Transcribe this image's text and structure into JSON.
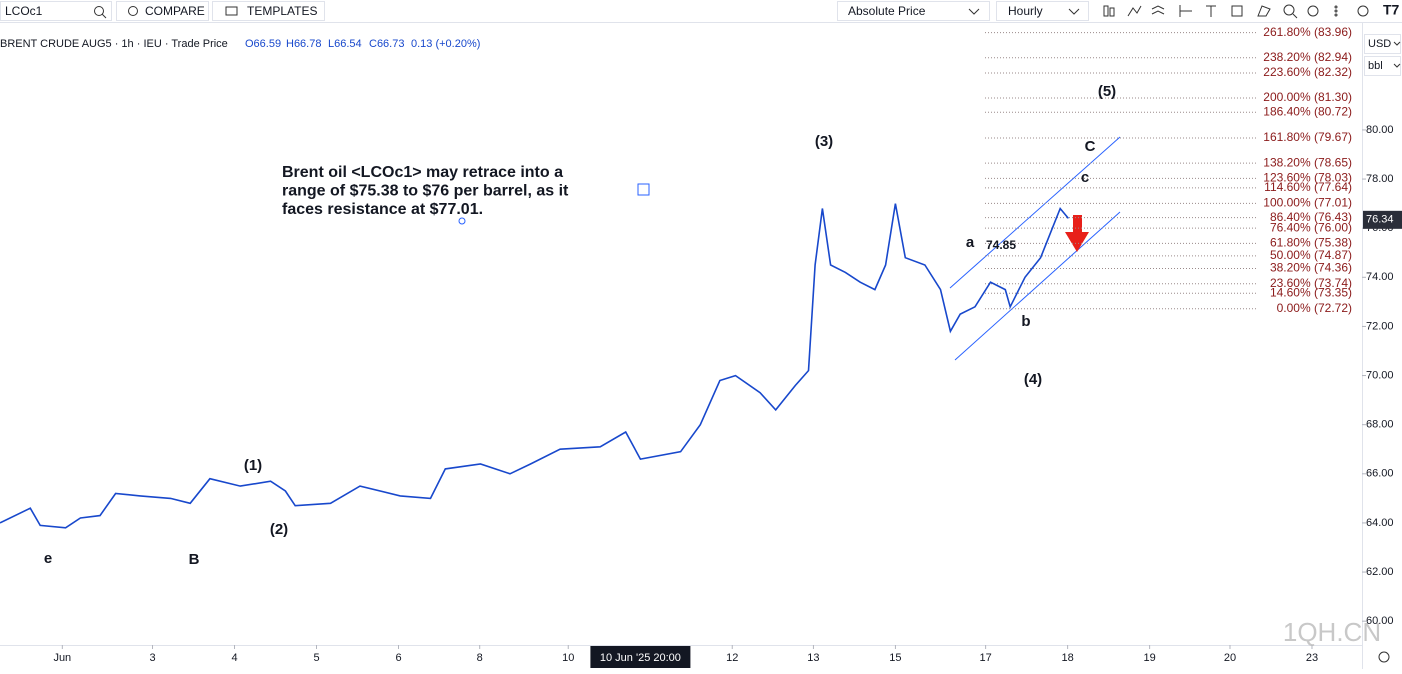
{
  "toolbar": {
    "symbol": "LCOc1",
    "compare": "COMPARE",
    "templates": "TEMPLATES",
    "price_mode": "Absolute Price",
    "interval": "Hourly"
  },
  "legend": {
    "title": "BRENT CRUDE AUG5 · 1h · IEU · Trade Price",
    "open": "O66.59",
    "high": "H66.78",
    "low": "L66.54",
    "close": "C66.73",
    "change": "0.13 (+0.20%)"
  },
  "currency": "USD",
  "unit": "bbl",
  "watermark": "1QH.CN",
  "chart_data": {
    "type": "line",
    "color": "#1848cc",
    "x": [
      -0.76,
      -0.39,
      -0.27,
      0.04,
      0.22,
      0.46,
      0.65,
      0.95,
      1.32,
      1.56,
      1.8,
      2.17,
      2.54,
      2.72,
      2.84,
      3.27,
      3.63,
      4.12,
      4.49,
      4.67,
      5.1,
      5.46,
      5.71,
      6.07,
      6.56,
      6.87,
      7.05,
      7.54,
      7.78,
      8.02,
      8.21,
      8.51,
      8.7,
      8.94,
      9.1,
      9.18,
      9.27,
      9.37,
      9.55,
      9.73,
      9.91,
      10.04,
      10.16,
      10.28,
      10.52,
      10.71,
      10.83,
      10.95,
      11.13,
      11.32,
      11.5,
      11.56,
      11.74,
      11.93,
      12.05,
      12.17,
      12.27
    ],
    "values": [
      64.0,
      64.6,
      63.9,
      63.8,
      64.2,
      64.3,
      65.2,
      65.1,
      65.0,
      64.8,
      65.8,
      65.5,
      65.7,
      65.3,
      64.7,
      64.8,
      65.5,
      65.1,
      65.0,
      66.2,
      66.4,
      66.0,
      66.4,
      67.0,
      67.1,
      67.7,
      66.6,
      66.9,
      68.0,
      69.8,
      70.0,
      69.3,
      68.6,
      69.6,
      70.2,
      74.5,
      76.8,
      74.5,
      74.2,
      73.8,
      73.5,
      74.5,
      77.0,
      74.8,
      74.5,
      73.5,
      71.8,
      72.5,
      72.8,
      73.8,
      73.5,
      72.8,
      74.0,
      74.8,
      75.8,
      76.8,
      76.4
    ],
    "xlim": [
      -0.76,
      15.85
    ],
    "xticks": [
      {
        "value": 0,
        "label": "Jun"
      },
      {
        "value": 1.1,
        "label": "3"
      },
      {
        "value": 2.1,
        "label": "4"
      },
      {
        "value": 3.1,
        "label": "5"
      },
      {
        "value": 4.1,
        "label": "6"
      },
      {
        "value": 5.09,
        "label": "8"
      },
      {
        "value": 6.17,
        "label": "10"
      },
      {
        "value": 8.17,
        "label": "12"
      },
      {
        "value": 9.16,
        "label": "13"
      },
      {
        "value": 10.16,
        "label": "15"
      },
      {
        "value": 11.26,
        "label": "17"
      },
      {
        "value": 12.26,
        "label": "18"
      },
      {
        "value": 13.26,
        "label": "19"
      },
      {
        "value": 14.24,
        "label": "20"
      },
      {
        "value": 15.24,
        "label": "23"
      }
    ],
    "ylim": [
      59.03,
      85.29
    ],
    "yticks": [
      {
        "value": 60,
        "label": "60.00"
      },
      {
        "value": 62,
        "label": "62.00"
      },
      {
        "value": 64,
        "label": "64.00"
      },
      {
        "value": 66,
        "label": "66.00"
      },
      {
        "value": 68,
        "label": "68.00"
      },
      {
        "value": 70,
        "label": "70.00"
      },
      {
        "value": 72,
        "label": "72.00"
      },
      {
        "value": 74,
        "label": "74.00"
      },
      {
        "value": 76,
        "label": "76.00"
      },
      {
        "value": 78,
        "label": "78.00"
      },
      {
        "value": 80,
        "label": "80.00"
      }
    ],
    "last_price": 76.34,
    "crosshair": {
      "value": 7.05,
      "label": "10 Jun '25 20:00"
    },
    "fib_levels": [
      {
        "value": 83.96,
        "label": "261.80% (83.96)"
      },
      {
        "value": 82.94,
        "label": "238.20% (82.94)"
      },
      {
        "value": 82.32,
        "label": "223.60% (82.32)"
      },
      {
        "value": 81.3,
        "label": "200.00% (81.30)"
      },
      {
        "value": 80.72,
        "label": "186.40% (80.72)"
      },
      {
        "value": 79.67,
        "label": "161.80% (79.67)"
      },
      {
        "value": 78.65,
        "label": "138.20% (78.65)"
      },
      {
        "value": 78.03,
        "label": "123.60% (78.03)"
      },
      {
        "value": 77.64,
        "label": "114.60% (77.64)"
      },
      {
        "value": 77.01,
        "label": "100.00% (77.01)"
      },
      {
        "value": 76.43,
        "label": "86.40% (76.43)"
      },
      {
        "value": 76.0,
        "label": "76.40% (76.00)"
      },
      {
        "value": 75.38,
        "label": "61.80% (75.38)"
      },
      {
        "value": 74.87,
        "label": "50.00% (74.87)"
      },
      {
        "value": 74.36,
        "label": "38.20% (74.36)"
      },
      {
        "value": 73.74,
        "label": "23.60% (73.74)"
      },
      {
        "value": 73.35,
        "label": "14.60% (73.35)"
      },
      {
        "value": 72.72,
        "label": "0.00% (72.72)"
      }
    ],
    "annotations": [
      "(1)",
      "(2)",
      "(3)",
      "(4)",
      "(5)",
      "e",
      "B",
      "a",
      "b",
      "c",
      "C",
      "74.85"
    ],
    "note": [
      "Brent oil <LCOc1> may retrace into a",
      "range of $75.38 to $76 per barrel, as it",
      "faces resistance at $77.01."
    ]
  }
}
